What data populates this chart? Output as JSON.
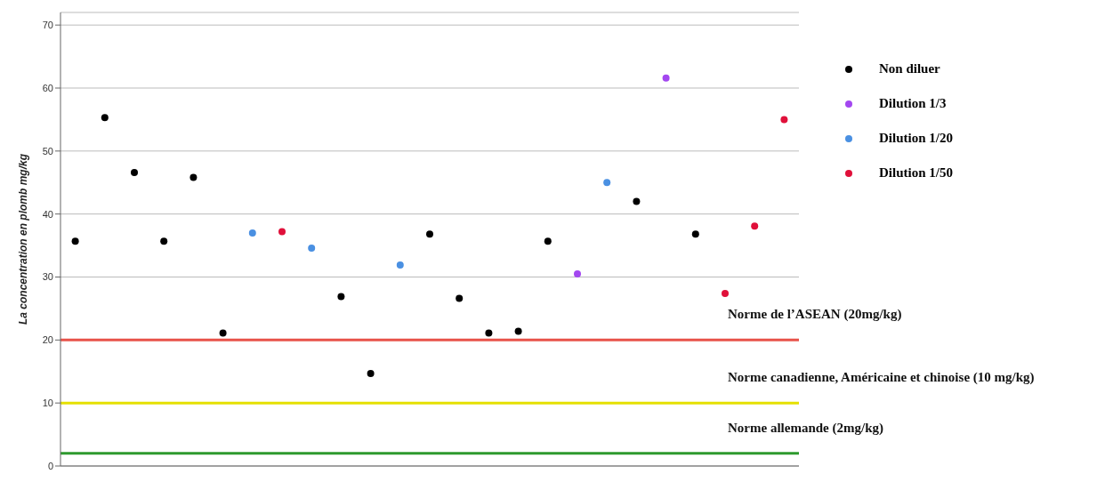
{
  "chart_data": {
    "type": "scatter",
    "ylabel": "La concentration en plomb mg/kg",
    "categories": [
      null,
      null,
      null,
      null,
      null,
      null,
      null,
      null,
      null,
      null,
      null,
      null,
      null,
      null,
      null,
      null,
      null,
      null,
      null,
      null,
      null,
      null,
      null,
      null,
      null
    ],
    "series": [
      {
        "name": "Non diluer",
        "color": "#000000",
        "values": [
          35.7,
          55.3,
          46.6,
          35.7,
          45.8,
          21.1,
          null,
          null,
          null,
          26.9,
          14.7,
          null,
          36.8,
          26.6,
          21.1,
          21.4,
          35.7,
          null,
          null,
          42.0,
          null,
          36.8,
          null,
          null,
          null
        ]
      },
      {
        "name": "Dilution 1/3",
        "color": "#a347f0",
        "values": [
          null,
          null,
          null,
          null,
          null,
          null,
          null,
          null,
          null,
          null,
          null,
          null,
          null,
          null,
          null,
          null,
          null,
          30.5,
          null,
          null,
          61.6,
          null,
          null,
          null,
          null
        ]
      },
      {
        "name": "Dilution 1/20",
        "color": "#4a90e2",
        "values": [
          null,
          null,
          null,
          null,
          null,
          null,
          37.0,
          null,
          34.6,
          null,
          null,
          31.9,
          null,
          null,
          null,
          null,
          null,
          null,
          45.0,
          null,
          null,
          null,
          null,
          null,
          null
        ]
      },
      {
        "name": "Dilution 1/50",
        "color": "#e0103a",
        "values": [
          null,
          null,
          null,
          null,
          null,
          null,
          null,
          37.2,
          null,
          null,
          null,
          null,
          null,
          null,
          null,
          null,
          null,
          null,
          null,
          null,
          null,
          null,
          27.4,
          38.1,
          55.0
        ]
      }
    ],
    "ylim": [
      0,
      72
    ],
    "yticks": [
      0,
      10,
      20,
      30,
      40,
      50,
      60,
      70
    ],
    "grid": "y",
    "legend": "top right",
    "marker": "circle",
    "ref_lines": [
      {
        "axis": "y",
        "value": 20,
        "label": "Norme de l’ASEAN (20mg/kg)",
        "color": "#e8534a"
      },
      {
        "axis": "y",
        "value": 10,
        "label": "Norme canadienne, Américaine et chinoise (10 mg/kg)",
        "color": "#e5e000"
      },
      {
        "axis": "y",
        "value": 2,
        "label": "Norme allemande (2mg/kg)",
        "color": "#2e9a2e"
      }
    ]
  }
}
